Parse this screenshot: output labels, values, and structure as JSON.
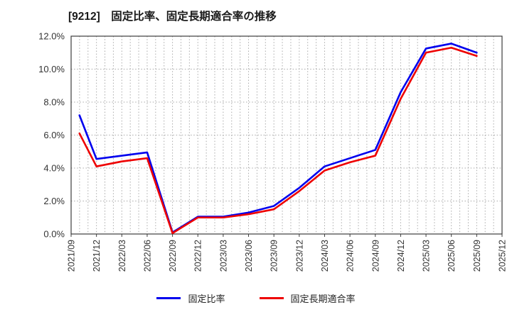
{
  "title": "[9212]　固定比率、固定長期適合率の推移",
  "chart_data": {
    "type": "line",
    "title": "[9212]　固定比率、固定長期適合率の推移",
    "x_axis": {
      "labels": [
        "2021/09",
        "2021/12",
        "2022/03",
        "2022/06",
        "2022/09",
        "2022/12",
        "2023/03",
        "2023/06",
        "2023/09",
        "2023/12",
        "2024/03",
        "2024/06",
        "2024/09",
        "2024/12",
        "2025/03",
        "2025/06",
        "2025/09",
        "2025/12"
      ],
      "label_rotation_deg": 90,
      "minor_gridlines_per_quarter": 3
    },
    "y_axis": {
      "min": 0,
      "max": 12,
      "ticks": [
        {
          "label": "12.0%",
          "value": 12
        },
        {
          "label": "10.0%",
          "value": 10
        },
        {
          "label": "8.0%",
          "value": 8
        },
        {
          "label": "6.0%",
          "value": 6
        },
        {
          "label": "4.0%",
          "value": 4
        },
        {
          "label": "2.0%",
          "value": 2
        },
        {
          "label": "0.0%",
          "value": 0
        }
      ]
    },
    "grid": {
      "style": "dotted",
      "color": "#aaaaaa",
      "frame_color": "#3c3c3c"
    },
    "legend_position": "bottom-center",
    "x_index_note": "x_index maps to x_axis.labels positions (0 = 2021/09); fractional 0.33 = one month after 2021/09; series end at 2025/09",
    "series": [
      {
        "name": "固定比率",
        "color": "#0000ee",
        "x_index": [
          0.33,
          1,
          2,
          3,
          4,
          5,
          6,
          7,
          8,
          9,
          10,
          11,
          12,
          13,
          14,
          15,
          16
        ],
        "values": [
          7.2,
          4.55,
          4.75,
          4.95,
          0.1,
          1.05,
          1.05,
          1.3,
          1.7,
          2.8,
          4.1,
          4.6,
          5.1,
          8.6,
          11.25,
          11.55,
          11.0
        ]
      },
      {
        "name": "固定長期適合率",
        "color": "#ee0000",
        "x_index": [
          0.33,
          1,
          2,
          3,
          4,
          5,
          6,
          7,
          8,
          9,
          10,
          11,
          12,
          13,
          14,
          15,
          16
        ],
        "values": [
          6.1,
          4.1,
          4.4,
          4.6,
          0.05,
          1.0,
          1.0,
          1.2,
          1.5,
          2.6,
          3.85,
          4.35,
          4.75,
          8.2,
          11.0,
          11.3,
          10.8
        ]
      }
    ]
  }
}
